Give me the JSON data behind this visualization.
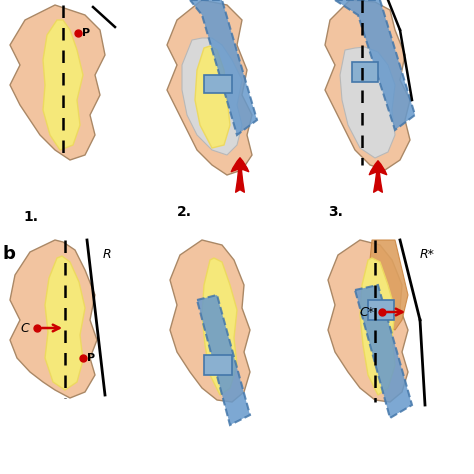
{
  "bg_color": "#ffffff",
  "skin_color": "#F2C4A0",
  "bone_color": "#F5E87A",
  "bone_yellow": "#EDD960",
  "blue_fill": "#6699CC",
  "blue_dashed_color": "#4477AA",
  "blue_rect_fill": "#8AB0D0",
  "gray_fill": "#D8D8D8",
  "gray_dark": "#B8B8B8",
  "orange_fill": "#DDA060",
  "red_color": "#CC0000",
  "black": "#000000",
  "label1": "1.",
  "label2": "2.",
  "label3": "3.",
  "label_b": "b",
  "label_P": "P",
  "label_C": "C",
  "label_Cstar": "C*",
  "label_R": "R",
  "label_Rstar": "R*"
}
